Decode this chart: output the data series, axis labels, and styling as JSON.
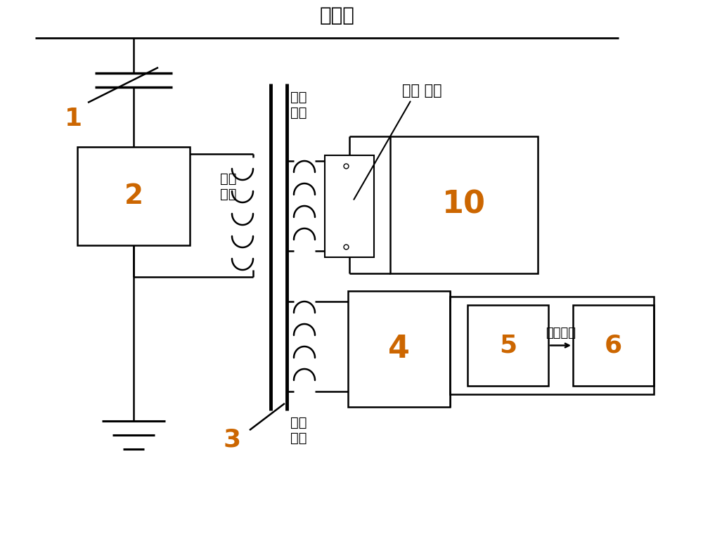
{
  "title": "高压端",
  "label_1": "1",
  "label_2": "2",
  "label_3": "3",
  "label_4": "4",
  "label_5": "5",
  "label_6": "6",
  "label_10": "10",
  "text_winding1": "第一\n绕组",
  "text_winding2": "第二\n绕组",
  "text_winding3": "第三\n绕组",
  "text_short_switch": "短路 开关",
  "text_control_signal": "控制信号",
  "bg_color": "#ffffff",
  "line_color": "#000000",
  "number_color": "#cc6600",
  "font_size_title": 20,
  "font_size_numbers": 26,
  "font_size_small": 14
}
